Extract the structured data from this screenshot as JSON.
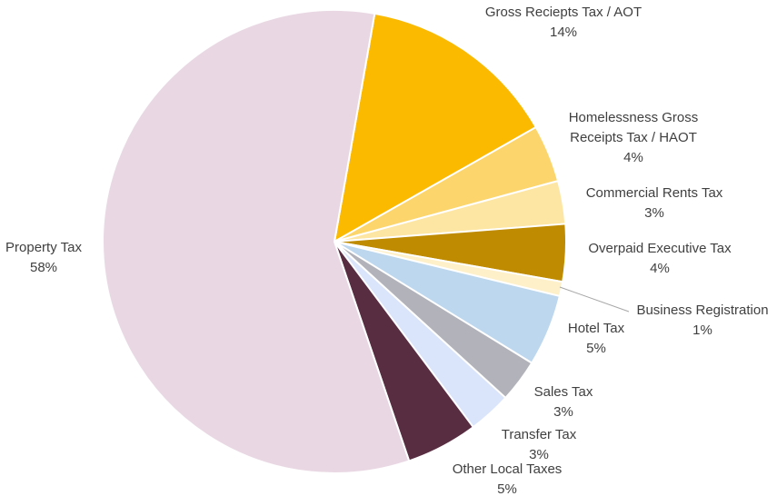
{
  "chart_data": {
    "type": "pie",
    "categories": [
      "Gross Reciepts Tax / AOT",
      "Homelessness Gross Receipts Tax / HAOT",
      "Commercial Rents Tax",
      "Overpaid Executive Tax",
      "Business Registration",
      "Hotel Tax",
      "Sales Tax",
      "Transfer Tax",
      "Other Local Taxes",
      "Property Tax"
    ],
    "values": [
      14,
      4,
      3,
      4,
      1,
      5,
      3,
      3,
      5,
      58
    ],
    "value_labels": [
      "14%",
      "4%",
      "3%",
      "4%",
      "1%",
      "5%",
      "3%",
      "3%",
      "5%",
      "58%"
    ],
    "colors": [
      "#fbba00",
      "#fcd66c",
      "#fde5a3",
      "#bf8b00",
      "#fef0c8",
      "#bdd7ee",
      "#b2b2ba",
      "#dae4fa",
      "#582d42",
      "#e9d8e3"
    ]
  }
}
